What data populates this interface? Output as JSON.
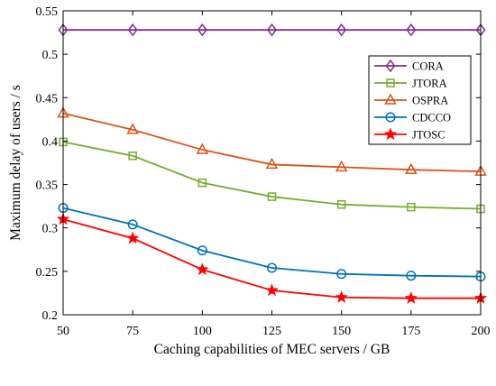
{
  "chart_data": {
    "type": "line",
    "title": "",
    "xlabel": "Caching capabilities of MEC servers / GB",
    "ylabel": "Maximum delay of users / s",
    "x": [
      50,
      75,
      100,
      125,
      150,
      175,
      200
    ],
    "x_tick_labels": [
      "50",
      "75",
      "100",
      "125",
      "150",
      "175",
      "200"
    ],
    "xlim": [
      50,
      200
    ],
    "y_ticks": [
      0.2,
      0.25,
      0.3,
      0.35,
      0.4,
      0.45,
      0.5,
      0.55
    ],
    "y_tick_labels": [
      "0.2",
      "0.25",
      "0.3",
      "0.35",
      "0.4",
      "0.45",
      "0.5",
      "0.55"
    ],
    "ylim": [
      0.2,
      0.55
    ],
    "grid": false,
    "legend_position": "top-right",
    "series": [
      {
        "name": "CORA",
        "color": "#7E2F8E",
        "marker": "diamond",
        "values": [
          0.528,
          0.528,
          0.528,
          0.528,
          0.528,
          0.528,
          0.528
        ]
      },
      {
        "name": "JTORA",
        "color": "#77AC30",
        "marker": "square",
        "values": [
          0.399,
          0.383,
          0.352,
          0.336,
          0.327,
          0.324,
          0.322
        ]
      },
      {
        "name": "OSPRA",
        "color": "#D95319",
        "marker": "triangle",
        "values": [
          0.432,
          0.413,
          0.39,
          0.373,
          0.37,
          0.367,
          0.365
        ]
      },
      {
        "name": "CDCCO",
        "color": "#0072BD",
        "marker": "circle",
        "values": [
          0.323,
          0.304,
          0.274,
          0.254,
          0.247,
          0.245,
          0.244
        ]
      },
      {
        "name": "JTOSC",
        "color": "#FF0000",
        "marker": "star",
        "values": [
          0.31,
          0.288,
          0.252,
          0.228,
          0.22,
          0.219,
          0.219
        ]
      }
    ]
  }
}
